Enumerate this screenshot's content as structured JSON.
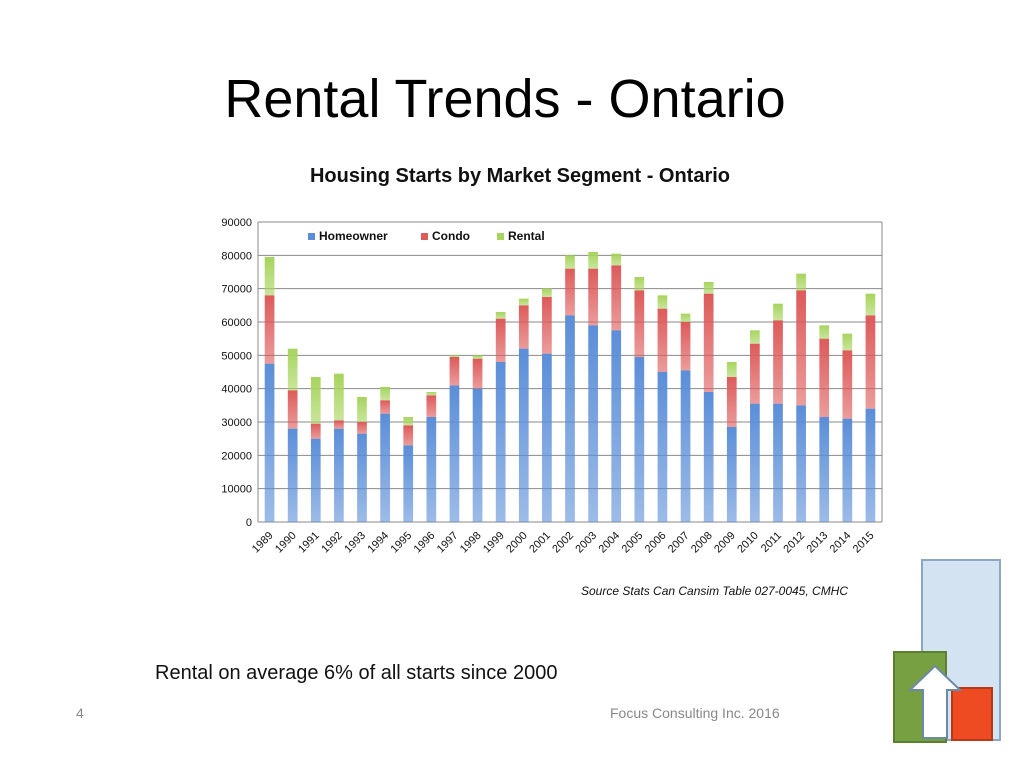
{
  "slide": {
    "title": "Rental Trends - Ontario",
    "source_note": "Source Stats Can Cansim Table 027-0045, CMHC",
    "summary": "Rental on average 6% of all starts since 2000",
    "slide_number": "4",
    "footer": "Focus Consulting Inc. 2016"
  },
  "colors": {
    "homeowner": "#5b8ed8",
    "condo": "#dd5a5a",
    "rental": "#a6d45c"
  },
  "chart_data": {
    "type": "bar",
    "stacked": true,
    "title": "Housing Starts by Market Segment  - Ontario",
    "xlabel": "",
    "ylabel": "",
    "ylim": [
      0,
      90000
    ],
    "yticks": [
      "0",
      "10000",
      "20000",
      "30000",
      "40000",
      "50000",
      "60000",
      "70000",
      "80000",
      "90000"
    ],
    "grid": true,
    "legend": "top-left",
    "categories": [
      "1989",
      "1990",
      "1991",
      "1992",
      "1993",
      "1994",
      "1995",
      "1996",
      "1997",
      "1998",
      "1999",
      "2000",
      "2001",
      "2002",
      "2003",
      "2004",
      "2005",
      "2006",
      "2007",
      "2008",
      "2009",
      "2010",
      "2011",
      "2012",
      "2013",
      "2014",
      "2015"
    ],
    "series": [
      {
        "name": "Homeowner",
        "values": [
          47500,
          28000,
          25000,
          28000,
          26500,
          32500,
          23000,
          31500,
          41000,
          40000,
          48000,
          52000,
          50500,
          62000,
          59000,
          57500,
          49500,
          45000,
          45500,
          39000,
          28500,
          35500,
          35500,
          35000,
          31500,
          31000,
          34000
        ]
      },
      {
        "name": "Condo",
        "values": [
          20500,
          11500,
          4500,
          2500,
          3500,
          4000,
          6000,
          6500,
          8500,
          9000,
          13000,
          13000,
          17000,
          14000,
          17000,
          19500,
          20000,
          19000,
          14500,
          29500,
          15000,
          18000,
          25000,
          34500,
          23500,
          20500,
          28000
        ]
      },
      {
        "name": "Rental",
        "values": [
          11500,
          12500,
          14000,
          14000,
          7500,
          4000,
          2500,
          1000,
          500,
          1000,
          2000,
          2000,
          2500,
          4000,
          5000,
          3500,
          4000,
          4000,
          2500,
          3500,
          4500,
          4000,
          5000,
          5000,
          4000,
          5000,
          6500
        ]
      }
    ]
  }
}
